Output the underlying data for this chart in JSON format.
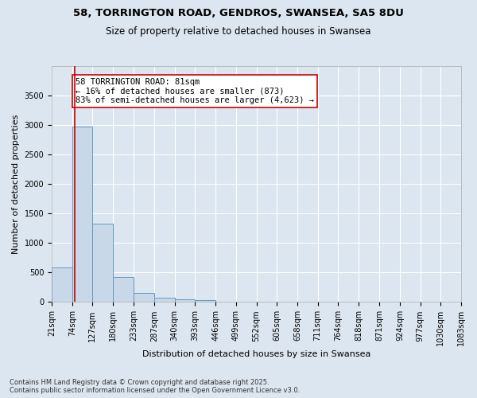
{
  "title": "58, TORRINGTON ROAD, GENDROS, SWANSEA, SA5 8DU",
  "subtitle": "Size of property relative to detached houses in Swansea",
  "xlabel": "Distribution of detached houses by size in Swansea",
  "ylabel": "Number of detached properties",
  "bar_edges": [
    21,
    74,
    127,
    180,
    233,
    287,
    340,
    393,
    446,
    499,
    552,
    605,
    658,
    711,
    764,
    818,
    871,
    924,
    977,
    1030,
    1083
  ],
  "bar_heights": [
    580,
    2970,
    1330,
    430,
    155,
    75,
    48,
    38,
    0,
    0,
    0,
    0,
    0,
    0,
    0,
    0,
    0,
    0,
    0,
    0
  ],
  "bar_color": "#c8d8e8",
  "bar_edgecolor": "#6699bb",
  "vline_x": 81,
  "vline_color": "#cc0000",
  "annotation_text": "58 TORRINGTON ROAD: 81sqm\n← 16% of detached houses are smaller (873)\n83% of semi-detached houses are larger (4,623) →",
  "annotation_box_color": "#ffffff",
  "annotation_box_edgecolor": "#cc0000",
  "ylim": [
    0,
    4000
  ],
  "yticks": [
    0,
    500,
    1000,
    1500,
    2000,
    2500,
    3000,
    3500
  ],
  "background_color": "#dce6f0",
  "plot_bg_color": "#dce6f0",
  "grid_color": "#ffffff",
  "footer_text": "Contains HM Land Registry data © Crown copyright and database right 2025.\nContains public sector information licensed under the Open Government Licence v3.0.",
  "title_fontsize": 9.5,
  "subtitle_fontsize": 8.5,
  "axis_label_fontsize": 8,
  "tick_fontsize": 7,
  "annotation_fontsize": 7.5
}
